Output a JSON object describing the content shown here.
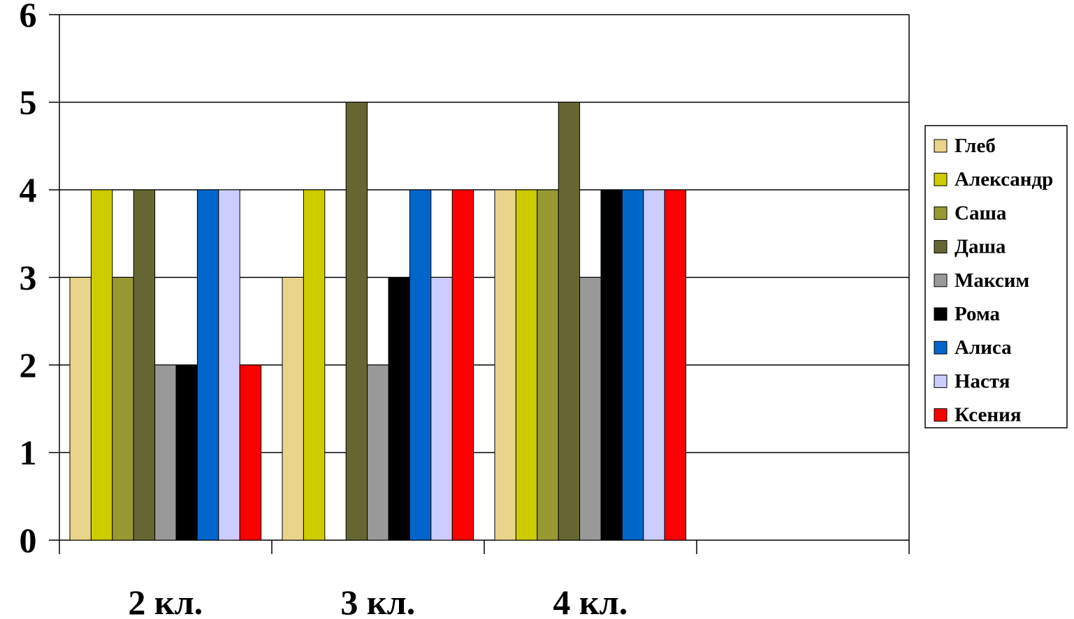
{
  "chart_data": {
    "type": "bar",
    "categories": [
      "2 кл.",
      "3 кл.",
      "4 кл.",
      ""
    ],
    "ylim": [
      0,
      6
    ],
    "yticks": [
      "0",
      "1",
      "2",
      "3",
      "4",
      "5",
      "6"
    ],
    "grid": true,
    "legend_position": "right",
    "title": "",
    "xlabel": "",
    "ylabel": "",
    "series": [
      {
        "name": "Глеб",
        "color": "#E8D48A",
        "values": [
          3,
          3,
          4,
          null
        ]
      },
      {
        "name": "Александр",
        "color": "#CCCC00",
        "values": [
          4,
          4,
          4,
          null
        ]
      },
      {
        "name": "Саша",
        "color": "#999933",
        "values": [
          3,
          null,
          4,
          null
        ]
      },
      {
        "name": "Даша",
        "color": "#666633",
        "values": [
          4,
          5,
          5,
          null
        ]
      },
      {
        "name": "Максим",
        "color": "#999999",
        "values": [
          2,
          2,
          3,
          null
        ]
      },
      {
        "name": "Рома",
        "color": "#000000",
        "values": [
          2,
          3,
          4,
          null
        ]
      },
      {
        "name": "Алиса",
        "color": "#0066CC",
        "values": [
          4,
          4,
          4,
          null
        ]
      },
      {
        "name": "Настя",
        "color": "#CCCCFF",
        "values": [
          4,
          3,
          4,
          null
        ]
      },
      {
        "name": "Ксения",
        "color": "#FF0000",
        "values": [
          2,
          4,
          4,
          null
        ]
      }
    ]
  }
}
